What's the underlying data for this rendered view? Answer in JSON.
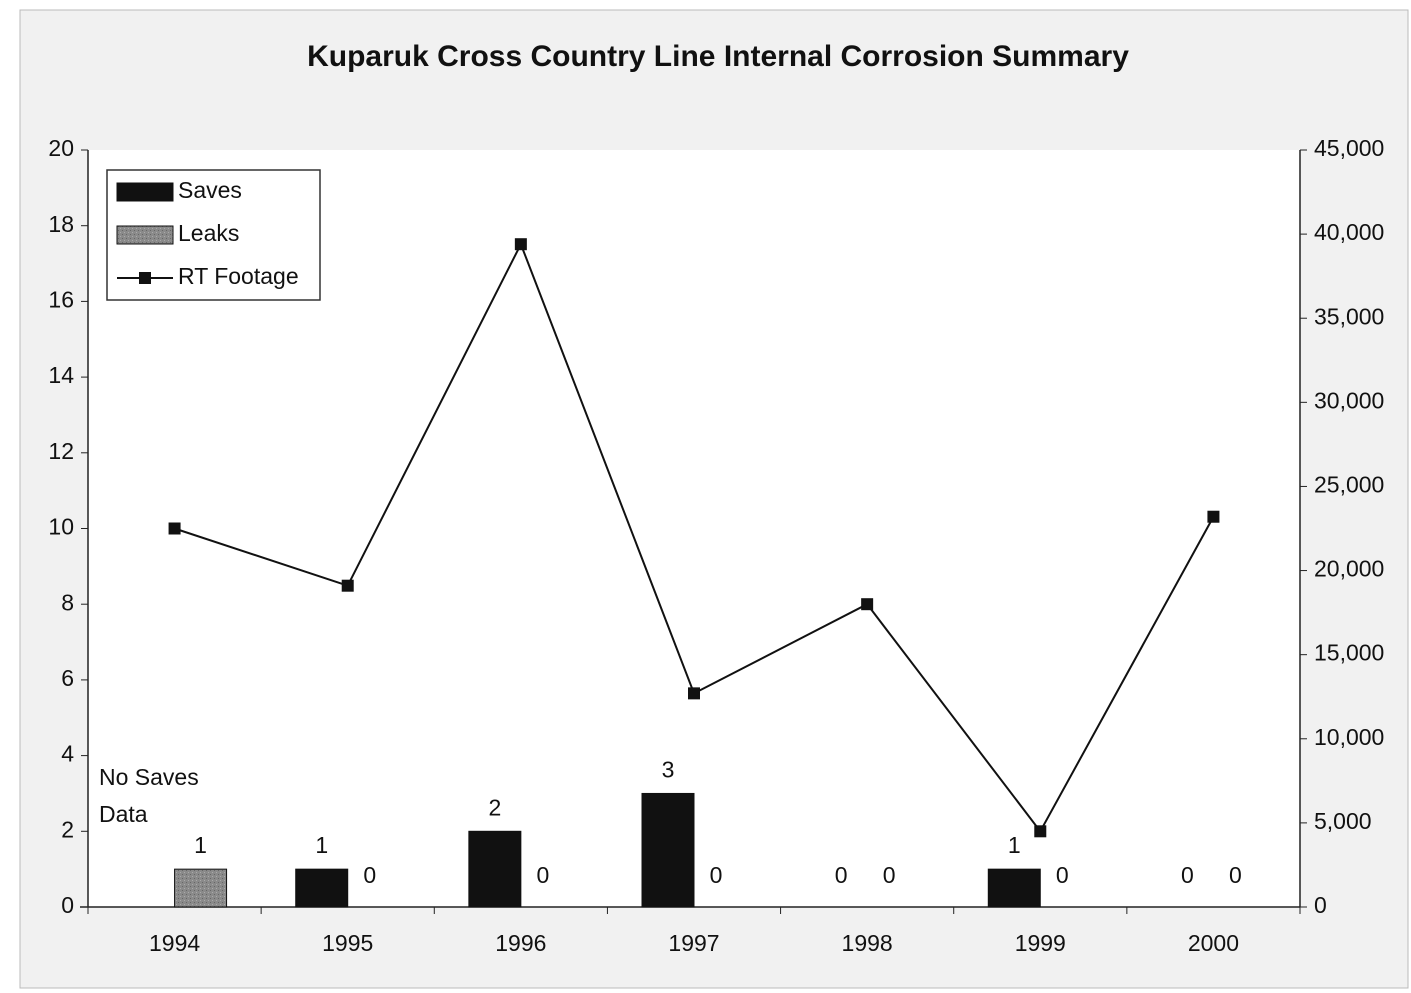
{
  "chart_data": {
    "type": "bar_line",
    "title": "Kuparuk Cross Country Line Internal Corrosion Summary",
    "categories": [
      "1994",
      "1995",
      "1996",
      "1997",
      "1998",
      "1999",
      "2000"
    ],
    "series": [
      {
        "name": "Saves",
        "type": "bar",
        "color": "#111111",
        "values": [
          null,
          1,
          2,
          3,
          0,
          1,
          0
        ]
      },
      {
        "name": "Leaks",
        "type": "bar",
        "color": "#8a8a8a",
        "values": [
          1,
          0,
          0,
          0,
          0,
          0,
          0
        ]
      },
      {
        "name": "RT Footage",
        "type": "line",
        "axis": "y2",
        "color": "#111111",
        "values": [
          22500,
          19100,
          39400,
          12700,
          18000,
          4500,
          23200
        ]
      }
    ],
    "annotation_lines": [
      "No Saves",
      "Data"
    ],
    "ylim": [
      0,
      20
    ],
    "yticks": [
      0,
      2,
      4,
      6,
      8,
      10,
      12,
      14,
      16,
      18,
      20
    ],
    "y2lim": [
      0,
      45000
    ],
    "y2ticks": [
      0,
      {
        "value": 5000,
        "label": "5,000"
      },
      {
        "value": 10000,
        "label": "10,000"
      },
      {
        "value": 15000,
        "label": "15,000"
      },
      {
        "value": 20000,
        "label": "20,000"
      },
      {
        "value": 25000,
        "label": "25,000"
      },
      {
        "value": 30000,
        "label": "30,000"
      },
      {
        "value": 35000,
        "label": "35,000"
      },
      {
        "value": 40000,
        "label": "40,000"
      },
      {
        "value": 45000,
        "label": "45,000"
      }
    ],
    "legend": "upper left"
  }
}
